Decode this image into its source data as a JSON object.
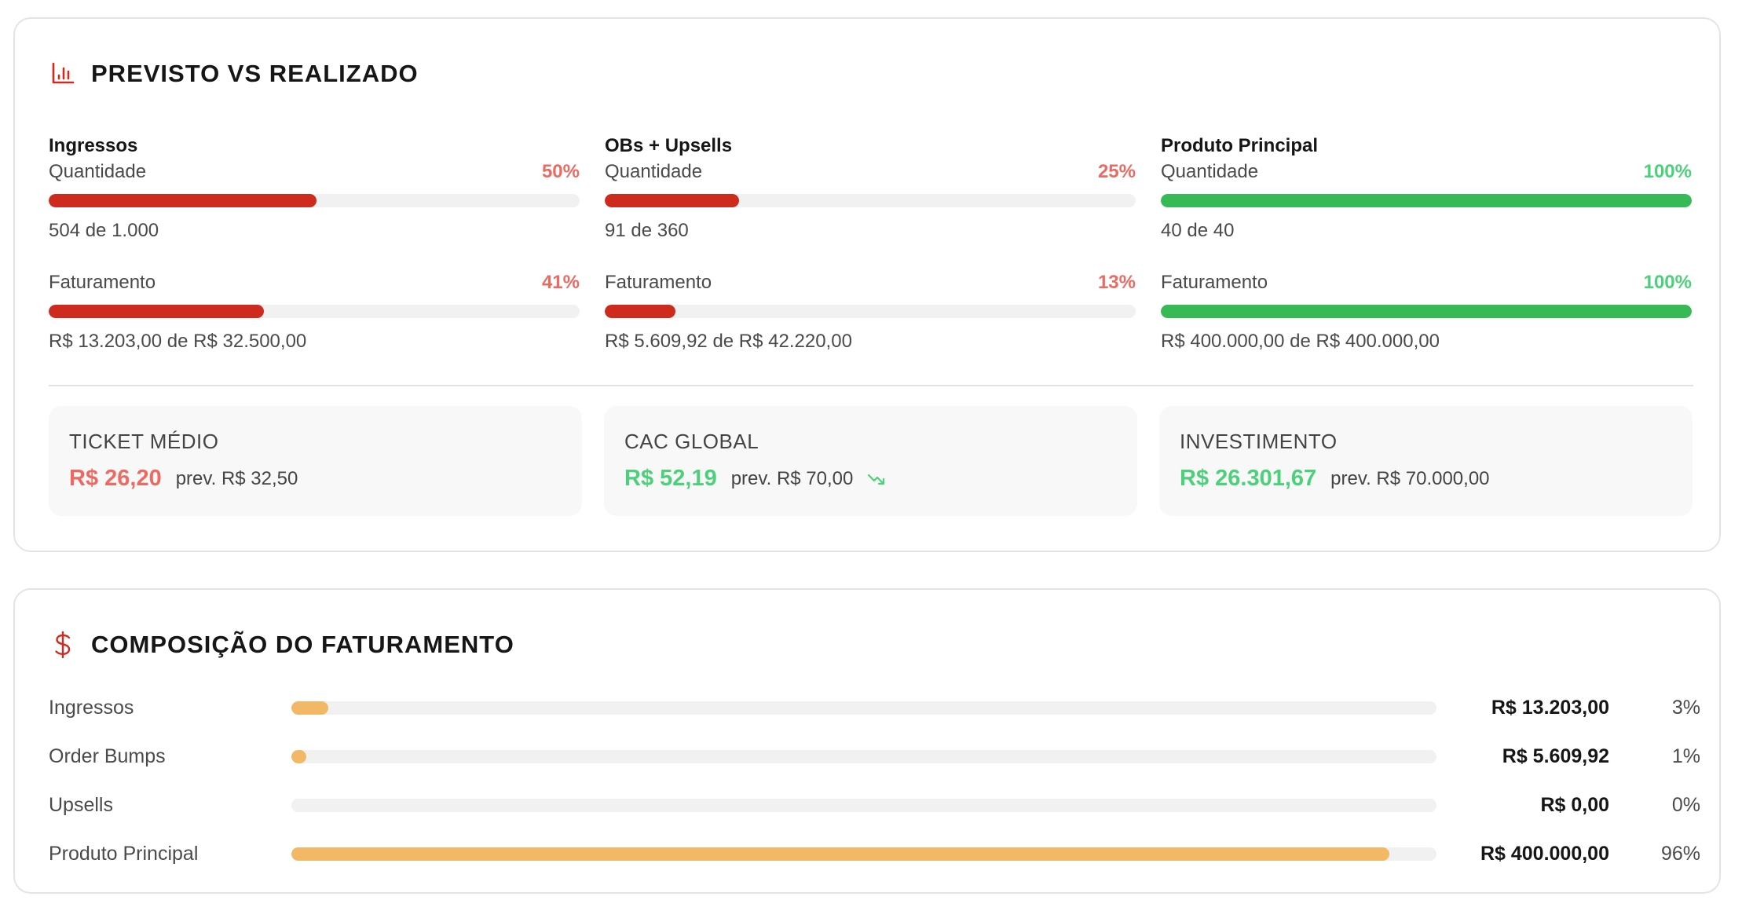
{
  "colors": {
    "red_bar": "#cf2a1e",
    "red_text": "#ec6a62",
    "green_bar": "#37ba56",
    "green_text": "#4cd07a",
    "orange_bar": "#f2b866",
    "track": "#f1f1f1",
    "icon_red": "#d12a1f"
  },
  "previsto": {
    "title": "PREVISTO VS REALIZADO",
    "icon": "bar-chart-icon",
    "columns": [
      {
        "title": "Ingressos",
        "quantidade": {
          "label": "Quantidade",
          "pct": "50%",
          "fill": 50.4,
          "status": "red",
          "sub": "504 de 1.000"
        },
        "faturamento": {
          "label": "Faturamento",
          "pct": "41%",
          "fill": 40.6,
          "status": "red",
          "sub": "R$ 13.203,00 de R$ 32.500,00"
        }
      },
      {
        "title": "OBs + Upsells",
        "quantidade": {
          "label": "Quantidade",
          "pct": "25%",
          "fill": 25.3,
          "status": "red",
          "sub": "91 de 360"
        },
        "faturamento": {
          "label": "Faturamento",
          "pct": "13%",
          "fill": 13.3,
          "status": "red",
          "sub": "R$ 5.609,92 de R$ 42.220,00"
        }
      },
      {
        "title": "Produto Principal",
        "quantidade": {
          "label": "Quantidade",
          "pct": "100%",
          "fill": 100,
          "status": "green",
          "sub": "40 de 40"
        },
        "faturamento": {
          "label": "Faturamento",
          "pct": "100%",
          "fill": 100,
          "status": "green",
          "sub": "R$ 400.000,00 de R$ 400.000,00"
        }
      }
    ],
    "summary": [
      {
        "label": "TICKET MÉDIO",
        "value": "R$ 26,20",
        "prev": "prev. R$ 32,50",
        "status": "red",
        "trend": null
      },
      {
        "label": "CAC GLOBAL",
        "value": "R$ 52,19",
        "prev": "prev. R$ 70,00",
        "status": "green",
        "trend": "trending-down-icon"
      },
      {
        "label": "INVESTIMENTO",
        "value": "R$ 26.301,67",
        "prev": "prev. R$ 70.000,00",
        "status": "green",
        "trend": null
      }
    ]
  },
  "composicao": {
    "title": "COMPOSIÇÃO DO FATURAMENTO",
    "icon": "dollar-icon",
    "rows": [
      {
        "label": "Ingressos",
        "value": "R$ 13.203,00",
        "pct": "3%",
        "fill": 3.2
      },
      {
        "label": "Order Bumps",
        "value": "R$ 5.609,92",
        "pct": "1%",
        "fill": 1.3
      },
      {
        "label": "Upsells",
        "value": "R$ 0,00",
        "pct": "0%",
        "fill": 0
      },
      {
        "label": "Produto Principal",
        "value": "R$ 400.000,00",
        "pct": "96%",
        "fill": 95.9
      }
    ]
  }
}
